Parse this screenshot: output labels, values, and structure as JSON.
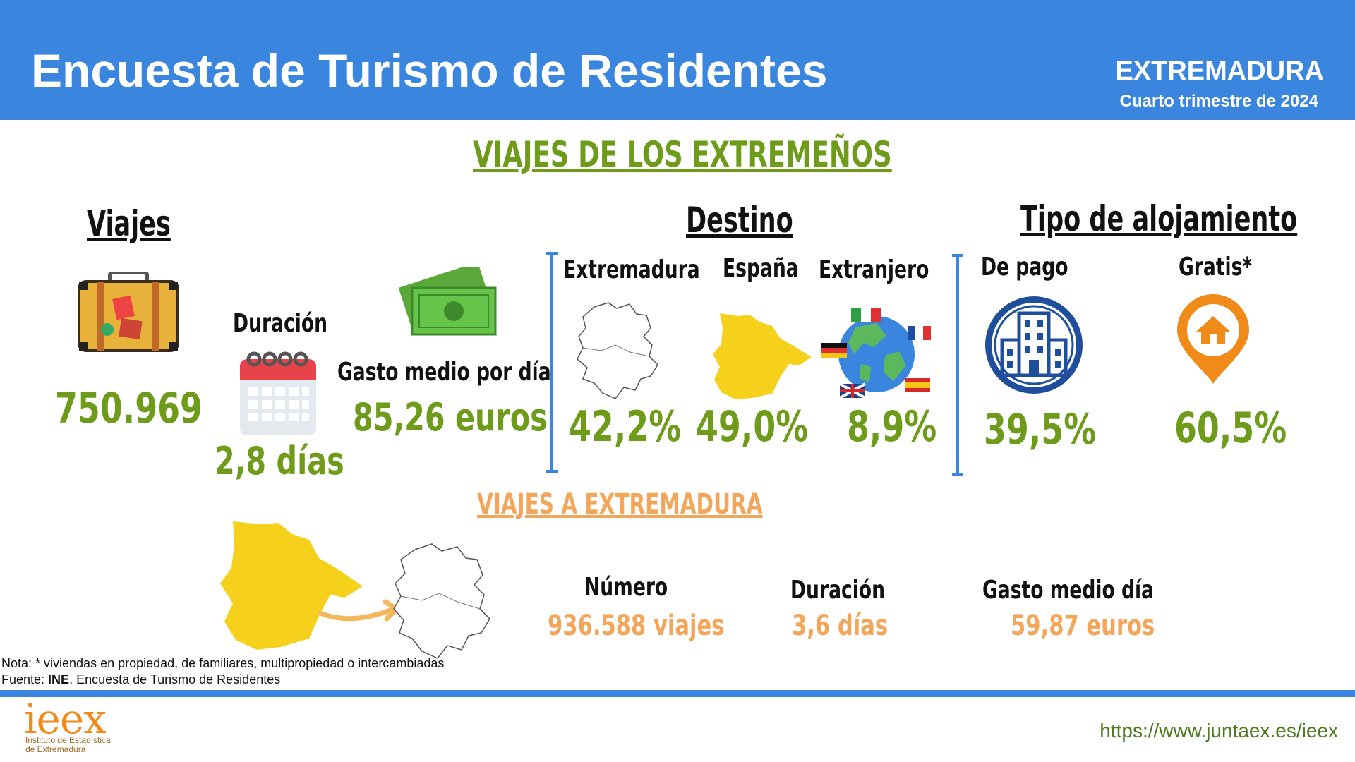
{
  "header": {
    "title": "Encuesta de Turismo de Residentes",
    "region": "EXTREMADURA",
    "period": "Cuarto trimestre de 2024"
  },
  "section1": {
    "title": "VIAJES DE LOS EXTREMEÑOS",
    "viajes": {
      "heading": "Viajes",
      "value": "750.969",
      "icon": "suitcase-icon"
    },
    "duracion": {
      "label": "Duración",
      "value": "2,8 días",
      "icon": "calendar-icon"
    },
    "gasto": {
      "label": "Gasto medio por día",
      "value": "85,26 euros",
      "icon": "money-icon"
    },
    "destino": {
      "heading": "Destino",
      "items": [
        {
          "label": "Extremadura",
          "value": "42,2%",
          "icon": "extremadura-map-icon"
        },
        {
          "label": "España",
          "value": "49,0%",
          "icon": "spain-map-icon"
        },
        {
          "label": "Extranjero",
          "value": "8,9%",
          "icon": "globe-flags-icon"
        }
      ]
    },
    "alojamiento": {
      "heading": "Tipo de alojamiento",
      "items": [
        {
          "label": "De pago",
          "value": "39,5%",
          "icon": "hotel-building-icon"
        },
        {
          "label": "Gratis*",
          "value": "60,5%",
          "icon": "home-pin-icon"
        }
      ]
    }
  },
  "section2": {
    "title": "VIAJES A EXTREMADURA",
    "numero": {
      "label": "Número",
      "value": "936.588 viajes"
    },
    "duracion": {
      "label": "Duración",
      "value": "3,6 días"
    },
    "gasto": {
      "label": "Gasto medio día",
      "value": "59,87 euros"
    }
  },
  "notes": {
    "nota": "Nota:  * viviendas en propiedad, de familiares, multipropiedad o intercambiadas",
    "fuente_prefix": "Fuente: ",
    "fuente_bold": "INE",
    "fuente_rest": ". Encuesta de Turismo de Residentes"
  },
  "footer": {
    "logo": "ieex",
    "logo_sub1": "Instituto de Estadística",
    "logo_sub2": "de Extremadura",
    "url": "https://www.juntaex.es/ieex"
  },
  "colors": {
    "header_blue": "#3a86de",
    "green": "#6e9c1a",
    "orange": "#f3a55a",
    "yellow": "#f5d11c"
  }
}
